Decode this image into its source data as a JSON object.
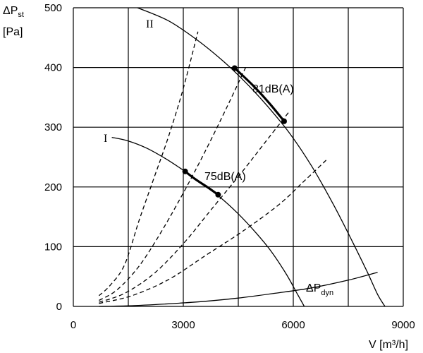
{
  "chart_data": {
    "type": "line",
    "ylabel": {
      "symbol": "ΔP",
      "subscript": "st",
      "unit": "[Pa]"
    },
    "xlabel": "V [m³/h]",
    "xlim": [
      0,
      9000
    ],
    "ylim": [
      0,
      500
    ],
    "x_ticks": [
      "0",
      "3000",
      "6000",
      "9000"
    ],
    "y_ticks": [
      "0",
      "100",
      "200",
      "300",
      "400",
      "500"
    ],
    "grid": true,
    "series": [
      {
        "name": "II",
        "style": "solid",
        "x": [
          1750,
          2600,
          3400,
          4100,
          4700,
          5300,
          5900,
          6500,
          7100,
          7600,
          8000,
          8300,
          8500
        ],
        "y": [
          500,
          478,
          445,
          410,
          375,
          335,
          290,
          235,
          170,
          110,
          60,
          20,
          0
        ]
      },
      {
        "name": "I",
        "style": "solid",
        "x": [
          1050,
          1500,
          2000,
          2500,
          3000,
          3500,
          4000,
          4500,
          5000,
          5400,
          5800,
          6100,
          6300
        ],
        "y": [
          283,
          277,
          265,
          248,
          228,
          206,
          183,
          155,
          122,
          92,
          55,
          22,
          0
        ]
      },
      {
        "name": "ΔPdyn",
        "subscript": "dyn",
        "style": "solid",
        "x": [
          700,
          1500,
          2500,
          3500,
          4500,
          5500,
          6500,
          7500,
          8300
        ],
        "y": [
          0,
          1,
          4,
          8,
          14,
          22,
          31,
          44,
          57
        ]
      },
      {
        "name": "",
        "style": "dashed",
        "x": [
          700,
          1000,
          1400,
          1800,
          2200,
          2600,
          3000,
          3400
        ],
        "y": [
          18,
          35,
          70,
          145,
          215,
          285,
          365,
          460
        ]
      },
      {
        "name": "",
        "style": "dashed",
        "x": [
          700,
          1200,
          1800,
          2400,
          3000,
          3600,
          4200,
          4700
        ],
        "y": [
          10,
          28,
          68,
          125,
          190,
          260,
          335,
          400
        ]
      },
      {
        "name": "",
        "style": "dashed",
        "x": [
          700,
          1400,
          2200,
          3000,
          3800,
          4600,
          5300,
          5900
        ],
        "y": [
          7,
          22,
          55,
          105,
          165,
          225,
          280,
          327
        ]
      },
      {
        "name": "",
        "style": "dashed",
        "x": [
          700,
          1600,
          2600,
          3600,
          4600,
          5600,
          6300,
          6900
        ],
        "y": [
          5,
          18,
          45,
          85,
          125,
          170,
          210,
          245
        ]
      }
    ],
    "operating_ranges": [
      {
        "label": "81dB(A)",
        "x": [
          4400,
          4900,
          5350,
          5750
        ],
        "y": [
          399,
          370,
          340,
          310
        ]
      },
      {
        "label": "75dB(A)",
        "x": [
          3050,
          3350,
          3650,
          3950
        ],
        "y": [
          226,
          212,
          200,
          187
        ]
      }
    ]
  }
}
